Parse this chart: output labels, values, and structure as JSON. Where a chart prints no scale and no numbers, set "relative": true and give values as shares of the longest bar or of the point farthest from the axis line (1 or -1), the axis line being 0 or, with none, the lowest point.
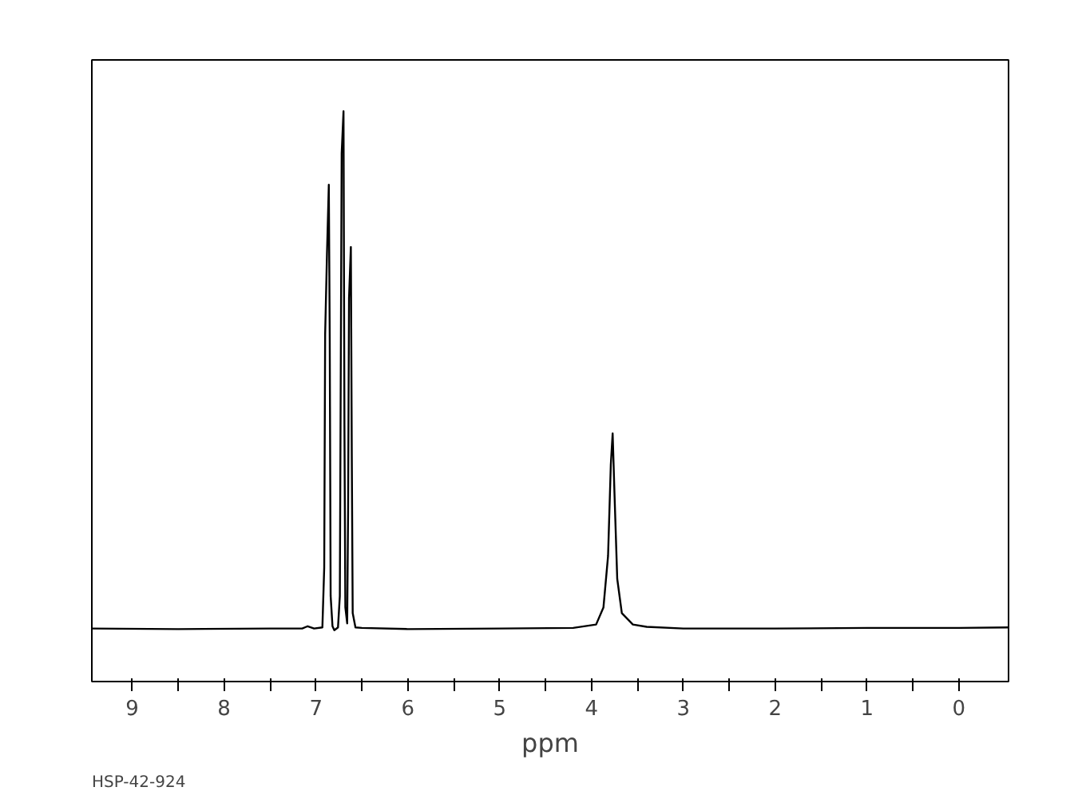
{
  "chart_data": {
    "type": "line",
    "relative": true,
    "xlabel": "ppm",
    "annotations": [
      "HSP-42-924"
    ],
    "xlim": [
      9.44,
      -0.54
    ],
    "xticks": [
      9,
      {
        "value": 8.5,
        "label": null
      },
      8,
      {
        "value": 7.5,
        "label": null
      },
      7,
      {
        "value": 6.5,
        "label": null
      },
      6,
      {
        "value": 5.5,
        "label": null
      },
      5,
      {
        "value": 4.5,
        "label": null
      },
      4,
      {
        "value": 3.5,
        "label": null
      },
      3,
      {
        "value": 2.5,
        "label": null
      },
      2,
      {
        "value": 1.5,
        "label": null
      },
      1,
      {
        "value": 0.5,
        "label": null
      },
      0
    ],
    "grid": false,
    "series": [
      {
        "color": "#000000",
        "x": [
          9.44,
          8.5,
          7.5,
          7.15,
          7.09,
          7.02,
          6.93,
          6.91,
          6.9,
          6.88,
          6.86,
          6.85,
          6.84,
          6.82,
          6.8,
          6.76,
          6.74,
          6.72,
          6.7,
          6.69,
          6.68,
          6.66,
          6.65,
          6.64,
          6.62,
          6.61,
          6.6,
          6.57,
          6.5,
          6.0,
          5.0,
          4.2,
          3.95,
          3.87,
          3.82,
          3.79,
          3.77,
          3.75,
          3.72,
          3.67,
          3.55,
          3.4,
          3.0,
          2.0,
          1.0,
          0.0,
          -0.54
        ],
        "values": [
          0.093,
          0.092,
          0.093,
          0.093,
          0.097,
          0.093,
          0.095,
          0.2,
          0.608,
          0.75,
          0.871,
          0.6,
          0.15,
          0.097,
          0.09,
          0.095,
          0.15,
          0.926,
          1.0,
          0.45,
          0.13,
          0.102,
          0.3,
          0.672,
          0.762,
          0.4,
          0.12,
          0.095,
          0.094,
          0.092,
          0.093,
          0.094,
          0.1,
          0.13,
          0.22,
          0.38,
          0.435,
          0.33,
          0.18,
          0.12,
          0.1,
          0.096,
          0.093,
          0.093,
          0.094,
          0.094,
          0.095
        ]
      }
    ]
  }
}
